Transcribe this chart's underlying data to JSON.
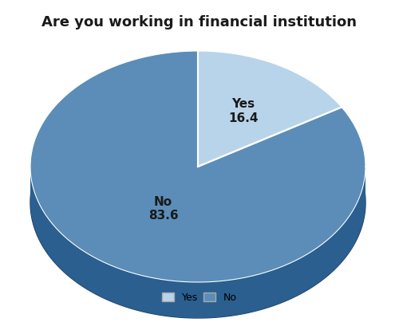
{
  "title": "Are you working in financial institution",
  "labels": [
    "Yes",
    "No"
  ],
  "values": [
    16.4,
    83.6
  ],
  "colors_top": [
    "#b8d4ea",
    "#5b8db8"
  ],
  "colors_side": [
    "#7aaace",
    "#2a5f8f"
  ],
  "colors_dark": [
    "#1a3a5c",
    "#1a3a5c"
  ],
  "edge_color": "#ffffff",
  "text_color": "#1a1a1a",
  "background_color": "#ffffff",
  "title_fontsize": 13,
  "label_fontsize": 11,
  "legend_fontsize": 9,
  "startangle": 90
}
